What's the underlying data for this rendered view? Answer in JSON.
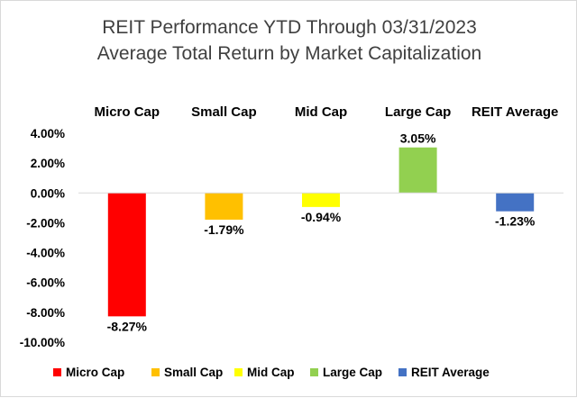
{
  "chart_data": {
    "type": "bar",
    "title": "REIT Performance YTD Through 03/31/2023",
    "subtitle": "Average Total Return by Market Capitalization",
    "categories": [
      "Micro Cap",
      "Small Cap",
      "Mid Cap",
      "Large Cap",
      "REIT Average"
    ],
    "values": [
      -8.27,
      -1.79,
      -0.94,
      3.05,
      -1.23
    ],
    "data_labels": [
      "-8.27%",
      "-1.79%",
      "-0.94%",
      "3.05%",
      "-1.23%"
    ],
    "colors": [
      "#ff0000",
      "#ffc000",
      "#ffff00",
      "#92d050",
      "#4472c4"
    ],
    "ylim": [
      -10,
      4
    ],
    "yticks": [
      4,
      2,
      0,
      -2,
      -4,
      -6,
      -8,
      -10
    ],
    "ytick_labels": [
      "4.00%",
      "2.00%",
      "0.00%",
      "-2.00%",
      "-4.00%",
      "-6.00%",
      "-8.00%",
      "-10.00%"
    ],
    "legend": [
      "Micro Cap",
      "Small Cap",
      "Mid Cap",
      "Large Cap",
      "REIT Average"
    ],
    "legend_position": "bottom",
    "category_labels_position": "top",
    "grid": false,
    "xlabel": "",
    "ylabel": ""
  }
}
